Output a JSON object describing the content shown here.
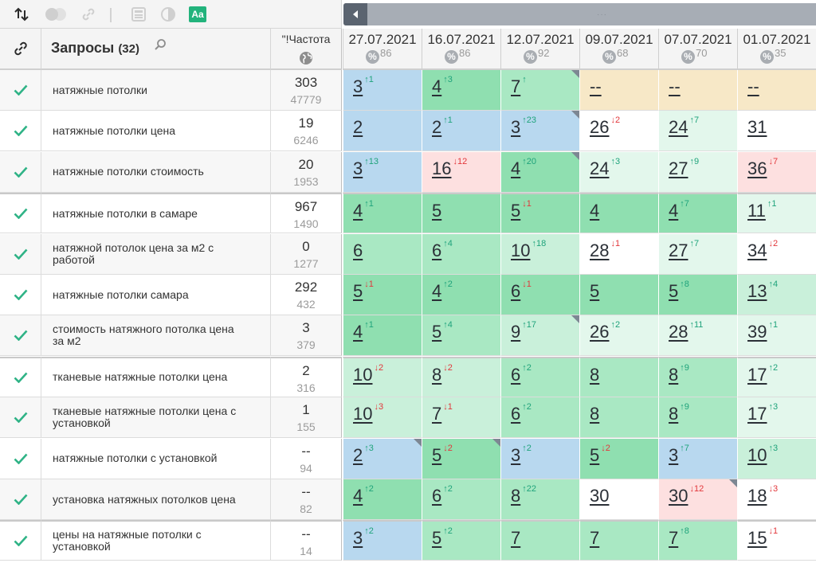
{
  "toolbar": {
    "icons": [
      "sort-icon",
      "toggle-icon",
      "link-icon",
      "calculator-icon",
      "contrast-icon",
      "font-icon"
    ],
    "font_icon_label": "Aa"
  },
  "scrollbar": {
    "grip": "···"
  },
  "header": {
    "queries_title": "Запросы",
    "queries_count": "(32)",
    "freq_title": "\"!Частота",
    "dates": [
      {
        "date": "27.07.2021",
        "vis": "86"
      },
      {
        "date": "16.07.2021",
        "vis": "86"
      },
      {
        "date": "12.07.2021",
        "vis": "92"
      },
      {
        "date": "09.07.2021",
        "vis": "68"
      },
      {
        "date": "07.07.2021",
        "vis": "70"
      },
      {
        "date": "01.07.2021",
        "vis": "35"
      }
    ],
    "pct_symbol": "%"
  },
  "colors": {
    "blue": "#b8d8ef",
    "green1": "#8fdfb0",
    "green2": "#a9e8c3",
    "green3": "#c9f0da",
    "green4": "#e3f7ec",
    "pink": "#fde0e0",
    "yellow": "#f7e8c7",
    "white": "#ffffff",
    "check": "#2fb386",
    "up": "#1fa37b",
    "down": "#e2373b"
  },
  "rows": [
    {
      "query": "натяжные потолки",
      "f1": "303",
      "f2": "47779",
      "cells": [
        [
          "3",
          "↑1",
          "up",
          "blue"
        ],
        [
          "4",
          "↑3",
          "up",
          "green1"
        ],
        [
          "7",
          "↑",
          "up",
          "green2",
          1
        ],
        [
          "--",
          "",
          "",
          "yellow"
        ],
        [
          "--",
          "",
          "",
          "yellow"
        ],
        [
          "--",
          "",
          "",
          "yellow"
        ]
      ]
    },
    {
      "query": "натяжные потолки цена",
      "f1": "19",
      "f2": "6246",
      "cells": [
        [
          "2",
          "",
          "",
          "blue"
        ],
        [
          "2",
          "↑1",
          "up",
          "blue"
        ],
        [
          "3",
          "↑23",
          "up",
          "blue",
          1
        ],
        [
          "26",
          "↓2",
          "dn",
          "white"
        ],
        [
          "24",
          "↑7",
          "up",
          "green4"
        ],
        [
          "31",
          "",
          "",
          "white"
        ]
      ]
    },
    {
      "query": "натяжные потолки стоимость",
      "f1": "20",
      "f2": "1953",
      "cells": [
        [
          "3",
          "↑13",
          "up",
          "blue"
        ],
        [
          "16",
          "↓12",
          "dn",
          "pink"
        ],
        [
          "4",
          "↑20",
          "up",
          "green1",
          1
        ],
        [
          "24",
          "↑3",
          "up",
          "green4"
        ],
        [
          "27",
          "↑9",
          "up",
          "green4"
        ],
        [
          "36",
          "↓7",
          "dn",
          "pink"
        ]
      ]
    },
    {
      "query": "натяжные потолки в самаре",
      "f1": "967",
      "f2": "1490",
      "cells": [
        [
          "4",
          "↑1",
          "up",
          "green1"
        ],
        [
          "5",
          "",
          "",
          "green1"
        ],
        [
          "5",
          "↓1",
          "dn",
          "green1"
        ],
        [
          "4",
          "",
          "",
          "green1"
        ],
        [
          "4",
          "↑7",
          "up",
          "green1"
        ],
        [
          "11",
          "↑1",
          "up",
          "green4"
        ]
      ]
    },
    {
      "query": "натяжной потолок цена за м2 с работой",
      "f1": "0",
      "f2": "1277",
      "cells": [
        [
          "6",
          "",
          "",
          "green2"
        ],
        [
          "6",
          "↑4",
          "up",
          "green2"
        ],
        [
          "10",
          "↑18",
          "up",
          "green3"
        ],
        [
          "28",
          "↓1",
          "dn",
          "white"
        ],
        [
          "27",
          "↑7",
          "up",
          "green4"
        ],
        [
          "34",
          "↓2",
          "dn",
          "white"
        ]
      ]
    },
    {
      "query": "натяжные потолки самара",
      "f1": "292",
      "f2": "432",
      "cells": [
        [
          "5",
          "↓1",
          "dn",
          "green1"
        ],
        [
          "4",
          "↑2",
          "up",
          "green1"
        ],
        [
          "6",
          "↓1",
          "dn",
          "green1"
        ],
        [
          "5",
          "",
          "",
          "green1"
        ],
        [
          "5",
          "↑8",
          "up",
          "green1"
        ],
        [
          "13",
          "↑4",
          "up",
          "green3"
        ]
      ]
    },
    {
      "query": "стоимость натяжного потолка цена за м2",
      "f1": "3",
      "f2": "379",
      "cells": [
        [
          "4",
          "↑1",
          "up",
          "green1"
        ],
        [
          "5",
          "↑4",
          "up",
          "green2"
        ],
        [
          "9",
          "↑17",
          "up",
          "green3",
          1
        ],
        [
          "26",
          "↑2",
          "up",
          "green4"
        ],
        [
          "28",
          "↑11",
          "up",
          "green4"
        ],
        [
          "39",
          "↑1",
          "up",
          "green4"
        ]
      ]
    },
    {
      "query": "тканевые натяжные потолки цена",
      "f1": "2",
      "f2": "316",
      "cells": [
        [
          "10",
          "↓2",
          "dn",
          "green3"
        ],
        [
          "8",
          "↓2",
          "dn",
          "green3"
        ],
        [
          "6",
          "↑2",
          "up",
          "green2"
        ],
        [
          "8",
          "",
          "",
          "green2"
        ],
        [
          "8",
          "↑9",
          "up",
          "green2"
        ],
        [
          "17",
          "↑2",
          "up",
          "green4"
        ]
      ]
    },
    {
      "query": "тканевые натяжные потолки цена с установкой",
      "f1": "1",
      "f2": "155",
      "cells": [
        [
          "10",
          "↓3",
          "dn",
          "green3"
        ],
        [
          "7",
          "↓1",
          "dn",
          "green3"
        ],
        [
          "6",
          "↑2",
          "up",
          "green2"
        ],
        [
          "8",
          "",
          "",
          "green2"
        ],
        [
          "8",
          "↑9",
          "up",
          "green2"
        ],
        [
          "17",
          "↑3",
          "up",
          "green4"
        ]
      ]
    },
    {
      "query": "натяжные потолки с установкой",
      "f1": "--",
      "f2": "94",
      "cells": [
        [
          "2",
          "↑3",
          "up",
          "blue",
          1
        ],
        [
          "5",
          "↓2",
          "dn",
          "green1",
          1
        ],
        [
          "3",
          "↑2",
          "up",
          "blue"
        ],
        [
          "5",
          "↓2",
          "dn",
          "green1"
        ],
        [
          "3",
          "↑7",
          "up",
          "blue"
        ],
        [
          "10",
          "↑3",
          "up",
          "green3"
        ]
      ]
    },
    {
      "query": "установка натяжных потолков цена",
      "f1": "--",
      "f2": "82",
      "cells": [
        [
          "4",
          "↑2",
          "up",
          "green1"
        ],
        [
          "6",
          "↑2",
          "up",
          "green2"
        ],
        [
          "8",
          "↑22",
          "up",
          "green2"
        ],
        [
          "30",
          "",
          "",
          "white"
        ],
        [
          "30",
          "↓12",
          "dn",
          "pink",
          1
        ],
        [
          "18",
          "↓3",
          "dn",
          "white"
        ]
      ]
    },
    {
      "query": "цены на натяжные потолки с установкой",
      "f1": "--",
      "f2": "14",
      "cells": [
        [
          "3",
          "↑2",
          "up",
          "blue"
        ],
        [
          "5",
          "↑2",
          "up",
          "green2"
        ],
        [
          "7",
          "",
          "",
          "green2"
        ],
        [
          "7",
          "",
          "",
          "green2"
        ],
        [
          "7",
          "↑8",
          "up",
          "green2"
        ],
        [
          "15",
          "↓1",
          "dn",
          "white"
        ]
      ]
    }
  ]
}
